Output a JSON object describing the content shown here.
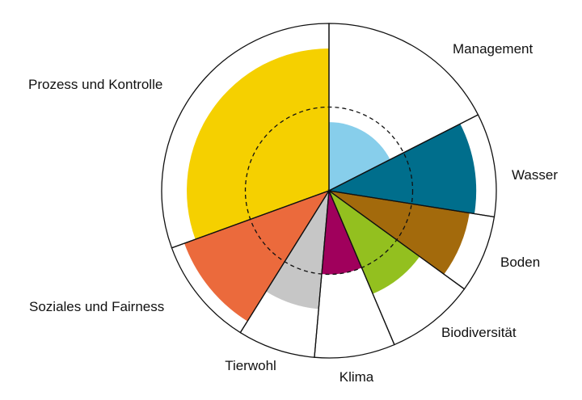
{
  "chart_data": {
    "type": "polar_area",
    "title": "",
    "reference_ring": 0.5,
    "rmax": 1.0,
    "sectors": [
      {
        "label": "Management",
        "value": 0.41,
        "angle_start": 0,
        "angle_end": 63,
        "color": "#87ceeb"
      },
      {
        "label": "Wasser",
        "value": 0.88,
        "angle_start": 63,
        "angle_end": 99,
        "color": "#006e8c"
      },
      {
        "label": "Boden",
        "value": 0.85,
        "angle_start": 99,
        "angle_end": 126,
        "color": "#a36a0c"
      },
      {
        "label": "Biodiversität",
        "value": 0.67,
        "angle_start": 126,
        "angle_end": 157,
        "color": "#93c01f"
      },
      {
        "label": "Klima",
        "value": 0.5,
        "angle_start": 157,
        "angle_end": 185,
        "color": "#a0005c"
      },
      {
        "label": "Tierwohl",
        "value": 0.71,
        "angle_start": 185,
        "angle_end": 212,
        "color": "#c6c6c6"
      },
      {
        "label": "Soziales und Fairness",
        "value": 0.92,
        "angle_start": 212,
        "angle_end": 250,
        "color": "#eb6a3c"
      },
      {
        "label": "Prozess und Kontrolle",
        "value": 0.85,
        "angle_start": 250,
        "angle_end": 360,
        "color": "#f5d000"
      }
    ]
  }
}
